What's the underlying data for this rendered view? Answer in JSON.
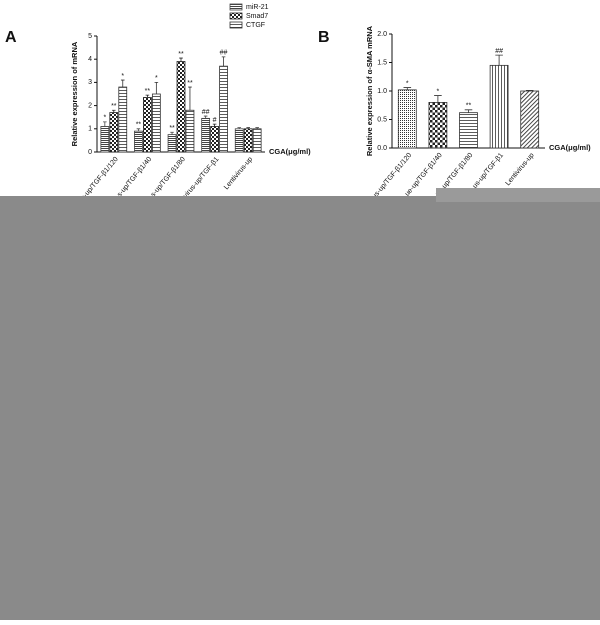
{
  "chart_data": [
    {
      "type": "bar",
      "panel_label": "A",
      "y_label": "Relative expression of mRNA",
      "x_label": "CGA(μg/ml)",
      "categories": [
        "us-up/TGF-β1/120",
        "s-up/TGF-β1/40",
        "s-up/TGF-β1/80",
        "virus-up/TGF-β1",
        "Lentivirus-up"
      ],
      "series": [
        {
          "name": "miR-21",
          "color": "#444444",
          "values": [
            1.1,
            0.9,
            0.75,
            1.45,
            1.0
          ],
          "errors": [
            0.2,
            0.1,
            0.1,
            0.1,
            0.05
          ],
          "annotations": [
            "*",
            "**",
            "**",
            "##",
            null
          ]
        },
        {
          "name": "Smad7",
          "color": "#222222",
          "values": [
            1.7,
            2.35,
            3.9,
            1.1,
            1.0
          ],
          "errors": [
            0.1,
            0.1,
            0.15,
            0.1,
            0.05
          ],
          "annotations": [
            "**",
            "**",
            "**",
            "#",
            null
          ]
        },
        {
          "name": "CTGF",
          "color": "#333333",
          "values": [
            2.8,
            2.5,
            1.8,
            3.7,
            1.0
          ],
          "errors": [
            0.3,
            0.5,
            1.0,
            0.4,
            0.05
          ],
          "annotations": [
            "*",
            "*",
            "**",
            "##",
            null
          ]
        }
      ],
      "ylim": [
        0,
        5
      ],
      "yticks": [
        0,
        1,
        2,
        3,
        4,
        5
      ]
    },
    {
      "type": "bar",
      "panel_label": "B",
      "y_label": "Relative expression of α-SMA mRNA",
      "x_label": "CGA(μg/ml)",
      "categories": [
        "us-up/TGF-β1/120",
        "ue-up/TGF-β1/40",
        "ue-up/TGF-β1/80",
        "us-up/TGF-β1",
        "Lentivirus-up"
      ],
      "values": [
        1.02,
        0.8,
        0.62,
        1.45,
        1.0
      ],
      "errors": [
        0.04,
        0.12,
        0.05,
        0.18,
        0.01
      ],
      "annotations": [
        "*",
        "*",
        "**",
        "##",
        null
      ],
      "color": "#333333",
      "ylim": [
        0,
        2
      ],
      "yticks": [
        {
          "value": 0,
          "label": "0.0"
        },
        0.5,
        {
          "value": 1,
          "label": "1.0"
        },
        1.5,
        {
          "value": 2,
          "label": "2.0"
        }
      ]
    }
  ]
}
